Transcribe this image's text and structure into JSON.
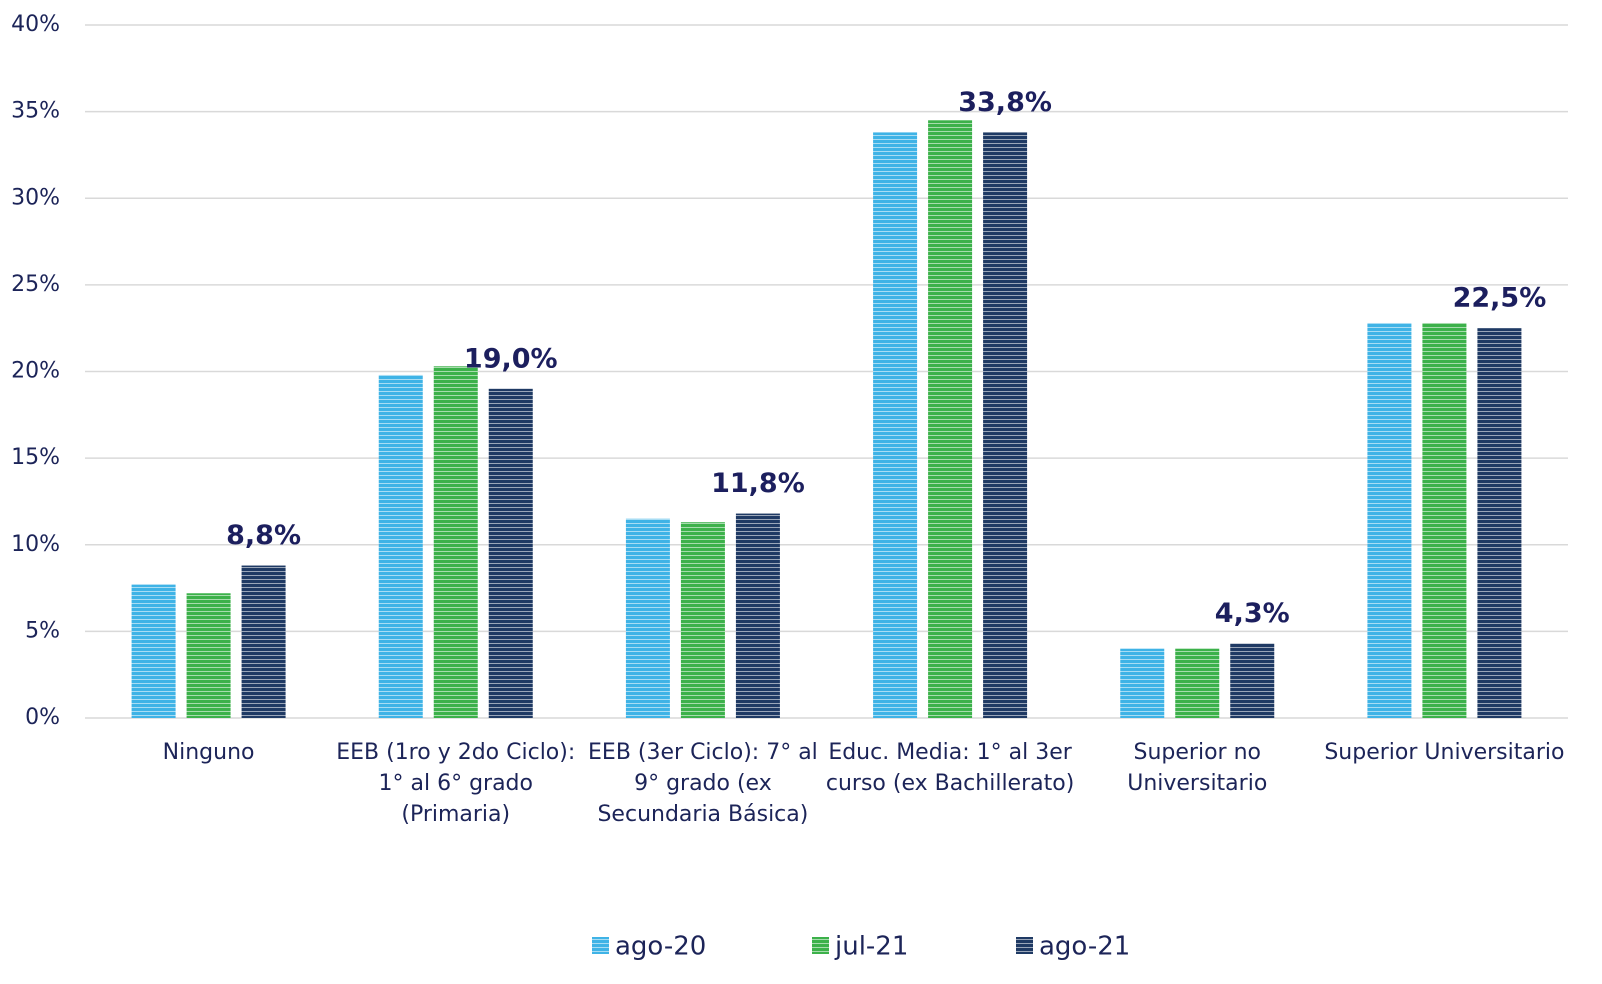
{
  "chart_data": {
    "type": "bar",
    "categories": [
      [
        "Ninguno"
      ],
      [
        "EEB (1ro y 2do Ciclo):",
        "1° al 6° grado",
        "(Primaria)"
      ],
      [
        "EEB (3er Ciclo): 7° al",
        "9° grado (ex",
        "Secundaria Básica)"
      ],
      [
        "Educ. Media: 1° al 3er",
        "curso (ex Bachillerato)"
      ],
      [
        "Superior no",
        "Universitario"
      ],
      [
        "Superior Universitario"
      ]
    ],
    "series": [
      {
        "name": "ago-20",
        "color": "#3fb3e6",
        "values": [
          7.7,
          19.8,
          11.5,
          33.8,
          4.0,
          22.8
        ]
      },
      {
        "name": "jul-21",
        "color": "#3cb14a",
        "values": [
          7.2,
          20.3,
          11.3,
          34.5,
          4.0,
          22.8
        ]
      },
      {
        "name": "ago-21",
        "color": "#1f3a64",
        "values": [
          8.8,
          19.0,
          11.8,
          33.8,
          4.3,
          22.5
        ],
        "value_labels": [
          "8,8%",
          "19,0%",
          "11,8%",
          "33,8%",
          "4,3%",
          "22,5%"
        ]
      }
    ],
    "ylim": [
      0,
      40
    ],
    "yticks": [
      {
        "value": 0,
        "label": "0%"
      },
      {
        "value": 5,
        "label": "5%"
      },
      {
        "value": 10,
        "label": "10%"
      },
      {
        "value": 15,
        "label": "15%"
      },
      {
        "value": 20,
        "label": "20%"
      },
      {
        "value": 25,
        "label": "25%"
      },
      {
        "value": 30,
        "label": "30%"
      },
      {
        "value": 35,
        "label": "35%"
      },
      {
        "value": 40,
        "label": "40%"
      }
    ],
    "grid": true,
    "legend": "bottom"
  }
}
